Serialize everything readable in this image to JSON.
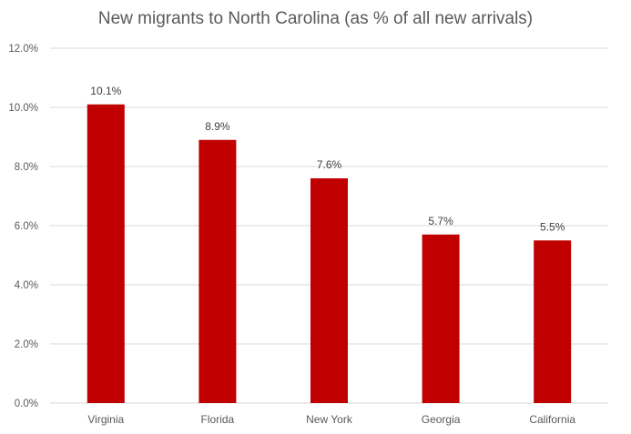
{
  "chart_data": {
    "type": "bar",
    "title": "New migrants to North Carolina (as % of all new arrivals)",
    "categories": [
      "Virginia",
      "Florida",
      "New York",
      "Georgia",
      "California"
    ],
    "values": [
      10.1,
      8.9,
      7.6,
      5.7,
      5.5
    ],
    "data_labels": [
      "10.1%",
      "8.9%",
      "7.6%",
      "5.7%",
      "5.5%"
    ],
    "y_ticks": [
      0,
      2,
      4,
      6,
      8,
      10,
      12
    ],
    "y_tick_labels": [
      "0.0%",
      "2.0%",
      "4.0%",
      "6.0%",
      "8.0%",
      "10.0%",
      "12.0%"
    ],
    "ylim": [
      0,
      12
    ],
    "xlabel": "",
    "ylabel": "",
    "grid": true,
    "legend": "none",
    "bar_color": "#C00000",
    "grid_color": "#D9D9D9"
  }
}
